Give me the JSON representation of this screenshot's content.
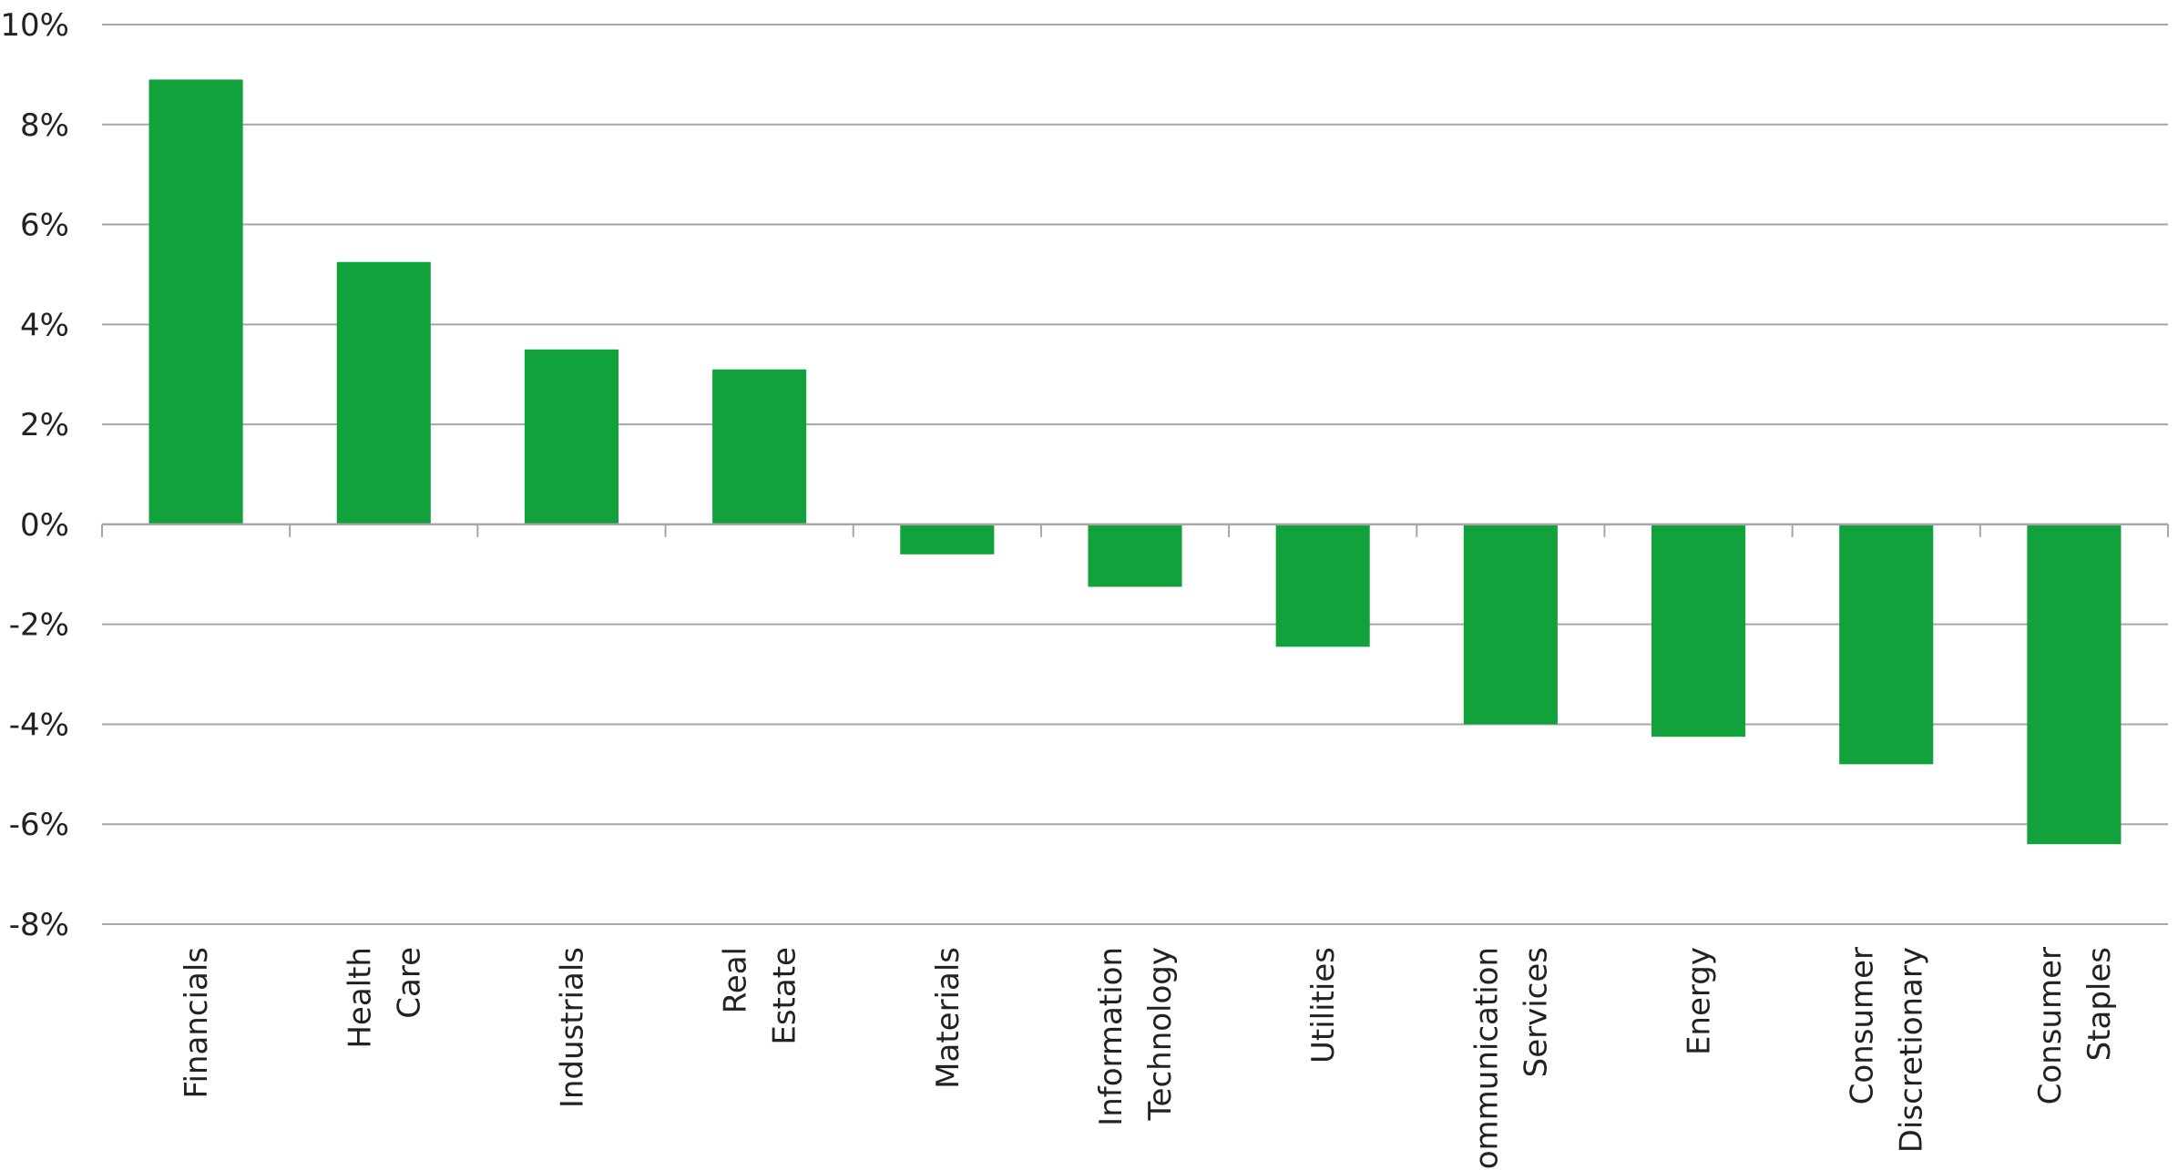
{
  "chart_data": {
    "type": "bar",
    "categories": [
      [
        "Financials"
      ],
      [
        "Health",
        "Care"
      ],
      [
        "Industrials"
      ],
      [
        "Real",
        "Estate"
      ],
      [
        "Materials"
      ],
      [
        "Information",
        "Technology"
      ],
      [
        "Utilities"
      ],
      [
        "Communication",
        "Services"
      ],
      [
        "Energy"
      ],
      [
        "Consumer",
        "Discretionary"
      ],
      [
        "Consumer",
        "Staples"
      ]
    ],
    "values": [
      8.9,
      5.25,
      3.5,
      3.1,
      -0.6,
      -1.25,
      -2.45,
      -4.0,
      -4.25,
      -4.8,
      -6.4
    ],
    "title": "",
    "xlabel": "",
    "ylabel": "",
    "ylim": [
      -8,
      10
    ],
    "yticks": [
      10,
      8,
      6,
      4,
      2,
      0,
      -2,
      -4,
      -6,
      -8
    ],
    "ytick_labels": [
      "10%",
      "8%",
      "6%",
      "4%",
      "2%",
      "0%",
      "-2%",
      "-4%",
      "-6%",
      "-8%"
    ],
    "grid": true,
    "legend": "none",
    "colors": {
      "bar": "#12a23c",
      "grid": "#a6a6a6",
      "axis": "#a6a6a6",
      "text": "#222222"
    }
  }
}
